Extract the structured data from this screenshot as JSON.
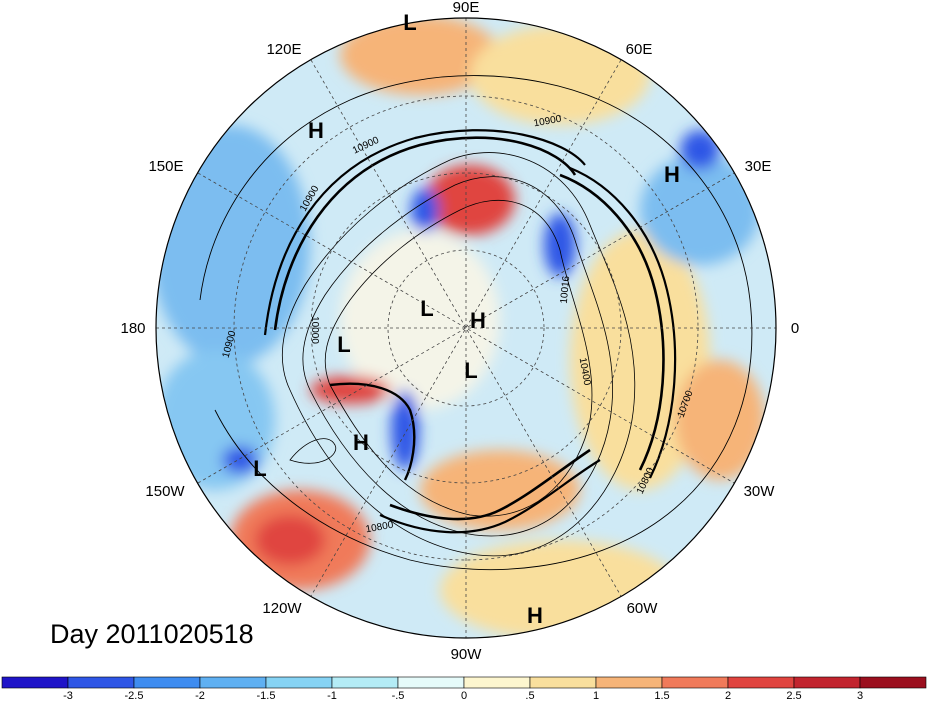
{
  "title": "Day 2011020518",
  "meridians": [
    {
      "text": "90E"
    },
    {
      "text": "60E"
    },
    {
      "text": "30E"
    },
    {
      "text": "0"
    },
    {
      "text": "30W"
    },
    {
      "text": "60W"
    },
    {
      "text": "90W"
    },
    {
      "text": "120W"
    },
    {
      "text": "150W"
    },
    {
      "text": "180"
    },
    {
      "text": "150E"
    },
    {
      "text": "120E"
    }
  ],
  "pressure_centers": [
    {
      "type": "L"
    },
    {
      "type": "H"
    },
    {
      "type": "H"
    },
    {
      "type": "L"
    },
    {
      "type": "H"
    },
    {
      "type": "L"
    },
    {
      "type": "L"
    },
    {
      "type": "H"
    },
    {
      "type": "L"
    },
    {
      "type": "H"
    }
  ],
  "contour_labels": [
    "10900",
    "10900",
    "10900",
    "10900",
    "10000",
    "10016",
    "10400",
    "10700",
    "10800",
    "10800"
  ],
  "colorbar": {
    "ticks": [
      "-3",
      "-2.5",
      "-2",
      "-1.5",
      "-1",
      "-.5",
      "0",
      ".5",
      "1",
      "1.5",
      "2",
      "2.5",
      "3"
    ],
    "colors": [
      "#1f14c8",
      "#2e56e6",
      "#3e8cf0",
      "#5fb0f2",
      "#86d3f4",
      "#b4ecf6",
      "#e6fbfa",
      "#fdf6cf",
      "#f9df9d",
      "#f6b478",
      "#f07a5a",
      "#e0443f",
      "#c2242e",
      "#9b0f1e"
    ]
  }
}
